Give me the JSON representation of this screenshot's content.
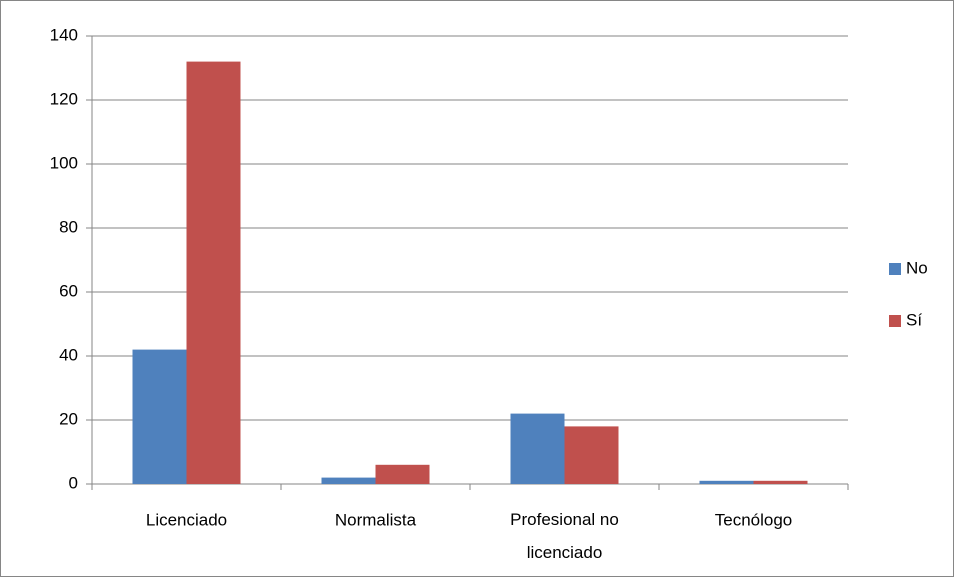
{
  "chart_data": {
    "type": "bar",
    "categories": [
      "Licenciado",
      "Normalista",
      "Profesional no licenciado",
      "Tecnólogo"
    ],
    "series": [
      {
        "name": "No",
        "color": "#4f81bd",
        "values": [
          42,
          2,
          22,
          1
        ]
      },
      {
        "name": "Sí",
        "color": "#c0504d",
        "values": [
          132,
          6,
          18,
          1
        ]
      }
    ],
    "ylim": [
      0,
      140
    ],
    "yticks": [
      0,
      20,
      40,
      60,
      80,
      100,
      120,
      140
    ],
    "grid": true,
    "legend": "right"
  }
}
